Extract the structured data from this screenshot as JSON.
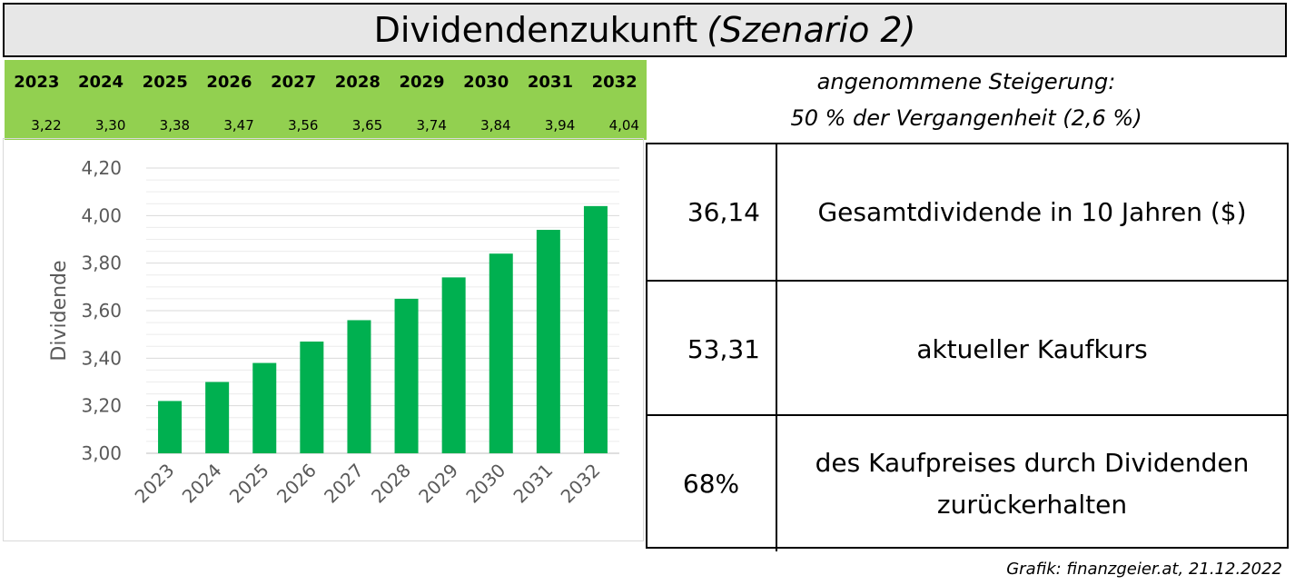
{
  "title": {
    "main": "Dividendenzukunft",
    "italic": "(Szenario 2)"
  },
  "year_strip": {
    "years": [
      "2023",
      "2024",
      "2025",
      "2026",
      "2027",
      "2028",
      "2029",
      "2030",
      "2031",
      "2032"
    ],
    "values": [
      "3,22",
      "3,30",
      "3,38",
      "3,47",
      "3,56",
      "3,65",
      "3,74",
      "3,84",
      "3,94",
      "4,04"
    ]
  },
  "assumption": {
    "line1": "angenommene Steigerung:",
    "line2": "50 % der Vergangenheit (2,6 %)"
  },
  "stats": [
    {
      "value": "36,14",
      "label": "Gesamtdividende in 10 Jahren ($)"
    },
    {
      "value": "53,31",
      "label": "aktueller Kaufkurs"
    },
    {
      "value": "68%",
      "label": "des Kaufpreises durch Dividenden zurückerhalten"
    }
  ],
  "credit": "Grafik: finanzgeier.at, 21.12.2022",
  "colors": {
    "bar": "#00b050",
    "strip": "#92d050",
    "title_bg": "#e7e7e7"
  },
  "chart_data": {
    "type": "bar",
    "categories": [
      "2023",
      "2024",
      "2025",
      "2026",
      "2027",
      "2028",
      "2029",
      "2030",
      "2031",
      "2032"
    ],
    "values": [
      3.22,
      3.3,
      3.38,
      3.47,
      3.56,
      3.65,
      3.74,
      3.84,
      3.94,
      4.04
    ],
    "ylabel": "Dividende",
    "ylim": [
      3.0,
      4.2
    ],
    "yticks": [
      "3,00",
      "3,20",
      "3,40",
      "3,60",
      "3,80",
      "4,00",
      "4,20"
    ],
    "grid": true
  }
}
